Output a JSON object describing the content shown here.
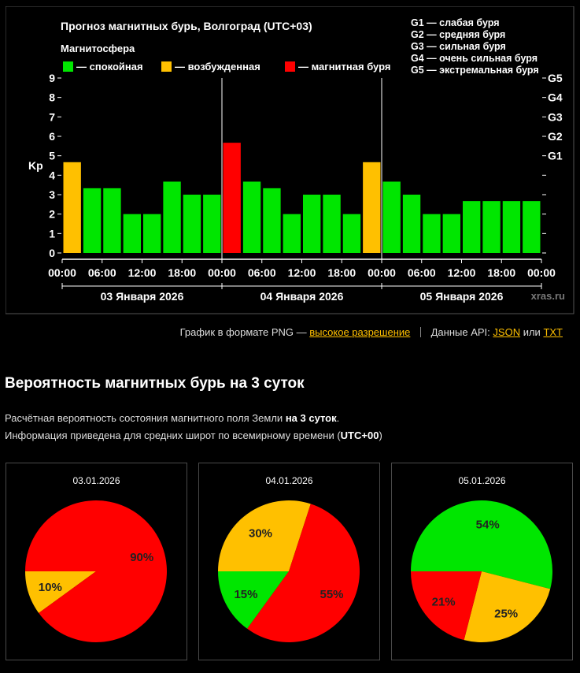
{
  "chart_data": {
    "type": "bar",
    "title": "Прогноз магнитных бурь, Волгоград (UTC+03)",
    "legend_title": "Магнитосфера",
    "legend": [
      {
        "label": "— спокойная",
        "color": "#00e600"
      },
      {
        "label": "— возбужденная",
        "color": "#ffc000"
      },
      {
        "label": "— магнитная буря",
        "color": "#ff0000"
      }
    ],
    "storm_levels": [
      "G1 — слабая буря",
      "G2 — средняя буря",
      "G3 — сильная буря",
      "G4 — очень сильная буря",
      "G5 — экстремальная буря"
    ],
    "ylabel": "Kp",
    "ylim": [
      0,
      9
    ],
    "y_ticks": [
      0,
      1,
      2,
      3,
      4,
      5,
      6,
      7,
      8,
      9
    ],
    "g_ticks": [
      {
        "label": "G1",
        "kp": 5
      },
      {
        "label": "G2",
        "kp": 6
      },
      {
        "label": "G3",
        "kp": 7
      },
      {
        "label": "G4",
        "kp": 8
      },
      {
        "label": "G5",
        "kp": 9
      }
    ],
    "x_tick_labels": [
      "00:00",
      "06:00",
      "12:00",
      "18:00",
      "00:00",
      "06:00",
      "12:00",
      "18:00",
      "00:00",
      "06:00",
      "12:00",
      "18:00",
      "00:00"
    ],
    "days": [
      "03 Января 2026",
      "04 Января 2026",
      "05 Января 2026"
    ],
    "values": [
      4.67,
      3.33,
      3.33,
      2.0,
      2.0,
      3.67,
      3.0,
      3.0,
      5.67,
      3.67,
      3.33,
      2.0,
      3.0,
      3.0,
      2.0,
      4.67,
      3.67,
      3.0,
      2.0,
      2.0,
      2.67,
      2.67,
      2.67,
      2.67
    ],
    "states": [
      "excited",
      "quiet",
      "quiet",
      "quiet",
      "quiet",
      "quiet",
      "quiet",
      "quiet",
      "storm",
      "quiet",
      "quiet",
      "quiet",
      "quiet",
      "quiet",
      "quiet",
      "excited",
      "quiet",
      "quiet",
      "quiet",
      "quiet",
      "quiet",
      "quiet",
      "quiet",
      "quiet"
    ],
    "colors": {
      "quiet": "#00e600",
      "excited": "#ffc000",
      "storm": "#ff0000"
    },
    "watermark": "xras.ru"
  },
  "links": {
    "png_prefix": "График в формате PNG —",
    "hi_res": "высокое разрешение",
    "api_prefix": "Данные API:",
    "json": "JSON",
    "or": "или",
    "txt": "TXT"
  },
  "probability": {
    "heading": "Вероятность магнитных бурь на 3 суток",
    "line1_prefix": "Расчётная вероятность состояния магнитного поля Земли",
    "line1_bold": "на 3 суток",
    "line1_suffix": ".",
    "line2_prefix": "Информация приведена для средних широт по всемирному времени (",
    "line2_bold": "UTC+00",
    "line2_suffix": ")",
    "pies": [
      {
        "date": "03.01.2026",
        "slices": [
          {
            "state": "excited",
            "value": 10,
            "label": "10%"
          },
          {
            "state": "storm",
            "value": 90,
            "label": "90%"
          }
        ]
      },
      {
        "date": "04.01.2026",
        "slices": [
          {
            "state": "quiet",
            "value": 15,
            "label": "15%"
          },
          {
            "state": "excited",
            "value": 30,
            "label": "30%"
          },
          {
            "state": "storm",
            "value": 55,
            "label": "55%"
          }
        ]
      },
      {
        "date": "05.01.2026",
        "slices": [
          {
            "state": "quiet",
            "value": 54,
            "label": "54%"
          },
          {
            "state": "excited",
            "value": 25,
            "label": "25%"
          },
          {
            "state": "storm",
            "value": 21,
            "label": "21%"
          }
        ]
      }
    ]
  }
}
